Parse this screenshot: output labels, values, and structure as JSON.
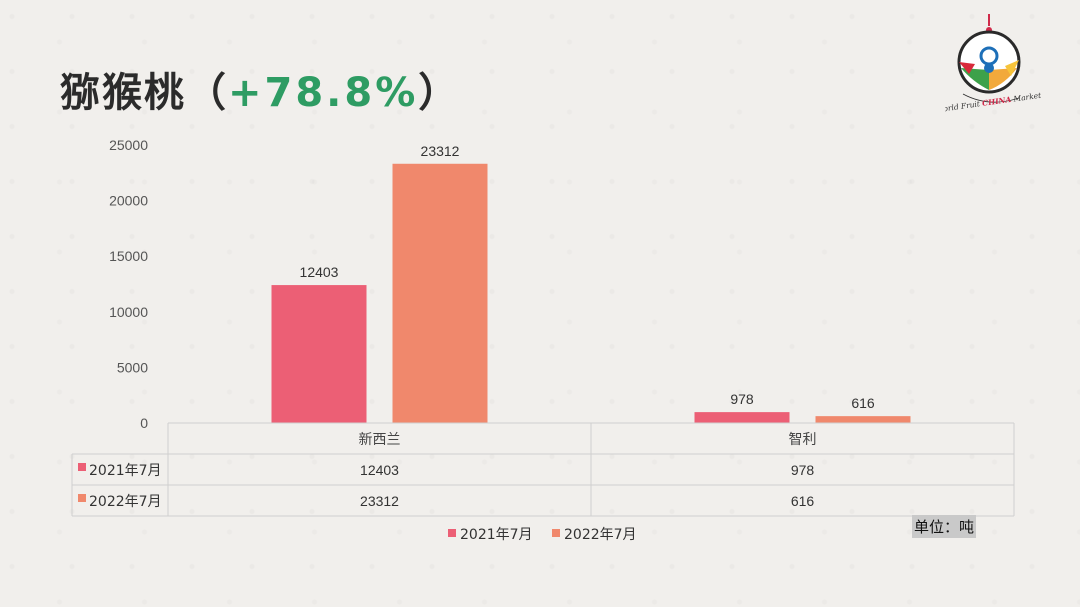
{
  "title": {
    "main": "猕猴桃",
    "open": "（",
    "pct": "+78.8%",
    "close": "）"
  },
  "unit_label": "单位：吨",
  "logo": {
    "icon": "world-fruit-china-market-logo",
    "text": "World Fruit CHINA Market"
  },
  "colors": {
    "series_2021": "#ec5f75",
    "series_2022": "#f0886c",
    "title_pct": "#2e9c63"
  },
  "chart_data": {
    "type": "bar",
    "categories": [
      "新西兰",
      "智利"
    ],
    "series": [
      {
        "name": "2021年7月",
        "values": [
          12403,
          978
        ]
      },
      {
        "name": "2022年7月",
        "values": [
          23312,
          616
        ]
      }
    ],
    "yticks": [
      0,
      5000,
      10000,
      15000,
      20000,
      25000
    ],
    "ylim": [
      0,
      25000
    ],
    "grid": false,
    "data_table": true,
    "legend": "bottom"
  }
}
